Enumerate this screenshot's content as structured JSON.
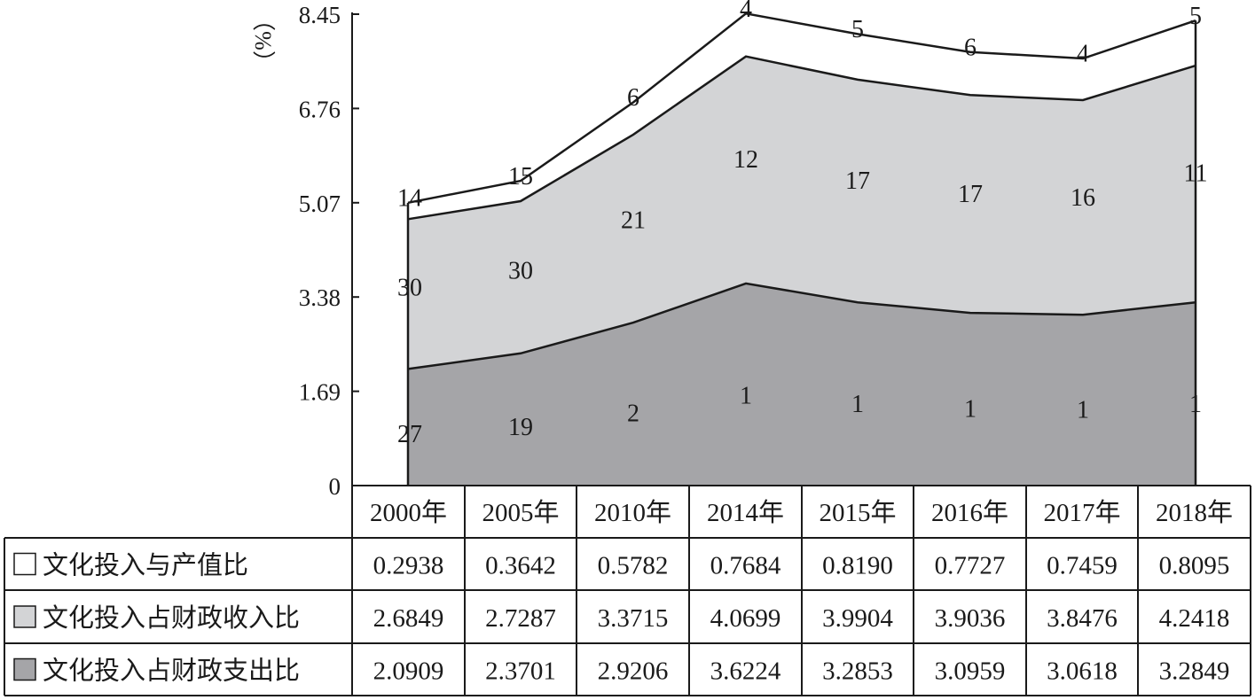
{
  "chart_data": {
    "type": "area",
    "stacked": true,
    "ylabel": "（%）",
    "ylim": [
      0,
      8.45
    ],
    "yticks": [
      "0",
      "1.69",
      "3.38",
      "5.07",
      "6.76",
      "8.45"
    ],
    "categories": [
      "2000年",
      "2005年",
      "2010年",
      "2014年",
      "2015年",
      "2016年",
      "2017年",
      "2018年"
    ],
    "grid": false,
    "legend_placement": "table rows below chart",
    "series": [
      {
        "name": "文化投入占财政支出比",
        "color": "#a5a5a8",
        "values": [
          2.0909,
          2.3701,
          2.9206,
          3.6224,
          3.2853,
          3.0959,
          3.0618,
          3.2849
        ],
        "values_text": [
          "2.0909",
          "2.3701",
          "2.9206",
          "3.6224",
          "3.2853",
          "3.0959",
          "3.0618",
          "3.2849"
        ],
        "labels": [
          "27",
          "19",
          "2",
          "1",
          "1",
          "1",
          "1",
          "1"
        ]
      },
      {
        "name": "文化投入占财政收入比",
        "color": "#d3d4d6",
        "values": [
          2.6849,
          2.7287,
          3.3715,
          4.0699,
          3.9904,
          3.9036,
          3.8476,
          4.2418
        ],
        "values_text": [
          "2.6849",
          "2.7287",
          "3.3715",
          "4.0699",
          "3.9904",
          "3.9036",
          "3.8476",
          "4.2418"
        ],
        "labels": [
          "30",
          "30",
          "21",
          "12",
          "17",
          "17",
          "16",
          "11"
        ]
      },
      {
        "name": "文化投入与产值比",
        "color": "#ffffff",
        "values": [
          0.2938,
          0.3642,
          0.5782,
          0.7684,
          0.819,
          0.7727,
          0.7459,
          0.8095
        ],
        "values_text": [
          "0.2938",
          "0.3642",
          "0.5782",
          "0.7684",
          "0.8190",
          "0.7727",
          "0.7459",
          "0.8095"
        ],
        "labels": [
          "14",
          "15",
          "6",
          "4",
          "5",
          "6",
          "4",
          "5"
        ]
      }
    ]
  }
}
